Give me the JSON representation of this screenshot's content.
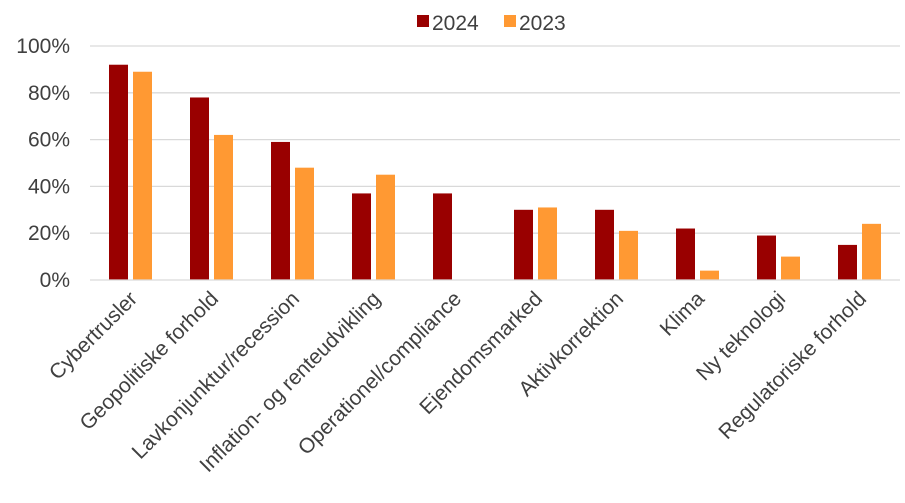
{
  "chart_data": {
    "type": "bar",
    "categories": [
      "Cybertrusler",
      "Geopolitiske forhold",
      "Lavkonjunktur/recession",
      "Inflation- og renteudvikling",
      "Operationel/compliance",
      "Ejendomsmarked",
      "Aktivkorrektion",
      "Klima",
      "Ny teknologi",
      "Regulatoriske forhold"
    ],
    "series": [
      {
        "name": "2024",
        "color": "#990000",
        "values": [
          92,
          78,
          59,
          37,
          37,
          30,
          30,
          22,
          19,
          15
        ]
      },
      {
        "name": "2023",
        "color": "#FF9933",
        "values": [
          89,
          62,
          48,
          45,
          null,
          31,
          21,
          4,
          10,
          24
        ]
      }
    ],
    "ylim": [
      0,
      100
    ],
    "yticks": [
      "0%",
      "20%",
      "40%",
      "60%",
      "80%",
      "100%"
    ],
    "ytick_values": [
      0,
      20,
      40,
      60,
      80,
      100
    ],
    "grid": true,
    "legend": "top-center"
  }
}
